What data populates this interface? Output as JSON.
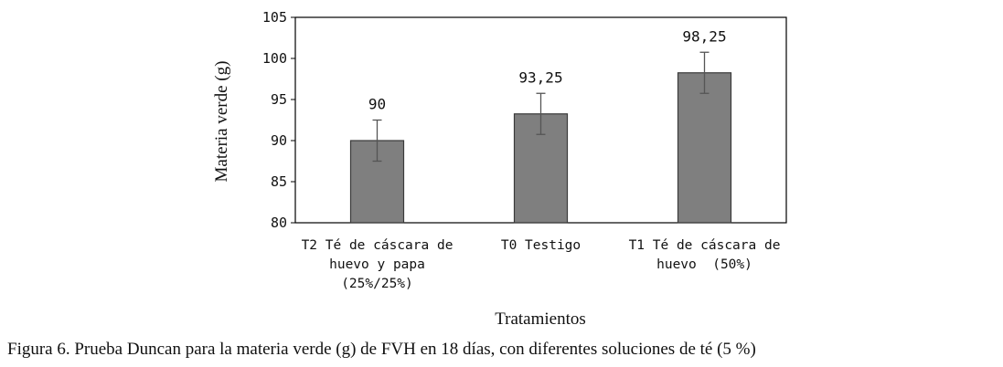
{
  "chart_data": {
    "type": "bar",
    "categories": [
      [
        "T2 Té de cáscara de",
        "huevo y papa",
        "(25%/25%)"
      ],
      [
        "T0 Testigo"
      ],
      [
        "T1 Té de cáscara de",
        "huevo  (50%)"
      ]
    ],
    "values": [
      90,
      93.25,
      98.25
    ],
    "value_labels": [
      "90",
      "93,25",
      "98,25"
    ],
    "error": [
      2.5,
      2.5,
      2.5
    ],
    "xlabel": "Tratamientos",
    "ylabel": "Materia verde (g)",
    "ylim": [
      80,
      105
    ],
    "yticks": [
      80,
      85,
      90,
      95,
      100,
      105
    ],
    "grid": false,
    "bar_color": "#7f7f7f",
    "caption": "Figura 6. Prueba Duncan para la materia verde (g) de FVH en 18 días, con diferentes soluciones de té (5 %)"
  }
}
